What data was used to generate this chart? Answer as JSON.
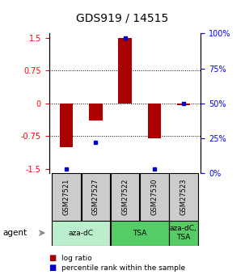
{
  "title": "GDS919 / 14515",
  "samples": [
    "GSM27521",
    "GSM27527",
    "GSM27522",
    "GSM27530",
    "GSM27523"
  ],
  "log_ratios": [
    -1.0,
    -0.4,
    1.5,
    -0.8,
    -0.05
  ],
  "percentile_ranks": [
    3,
    22,
    97,
    3,
    50
  ],
  "ylim_left": [
    -1.6,
    1.6
  ],
  "ylim_right": [
    0,
    100
  ],
  "yticks_left": [
    -1.5,
    -0.75,
    0,
    0.75,
    1.5
  ],
  "yticks_right": [
    0,
    25,
    50,
    75,
    100
  ],
  "ytick_labels_right": [
    "0%",
    "25%",
    "50%",
    "75%",
    "100%"
  ],
  "dotted_lines": [
    -0.75,
    0,
    0.75
  ],
  "bar_color": "#AA0000",
  "dot_color": "#0000CC",
  "groups": [
    {
      "label": "aza-dC",
      "samples": [
        0,
        1
      ],
      "color": "#BBEECC"
    },
    {
      "label": "TSA",
      "samples": [
        2,
        3
      ],
      "color": "#55CC66"
    },
    {
      "label": "aza-dC,\nTSA",
      "samples": [
        4
      ],
      "color": "#55CC66"
    }
  ],
  "agent_label": "agent",
  "legend_red": "log ratio",
  "legend_blue": "percentile rank within the sample",
  "bar_width": 0.45,
  "background_color": "#FFFFFF",
  "sample_box_color": "#CCCCCC",
  "title_fontsize": 10,
  "tick_fontsize": 7,
  "label_fontsize": 7
}
